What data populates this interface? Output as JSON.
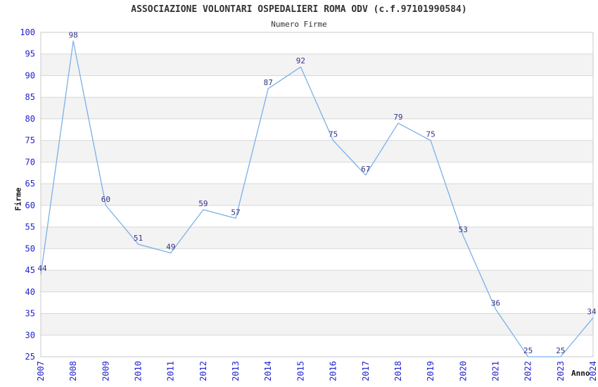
{
  "page": {
    "background": "#ffffff"
  },
  "chart_data": {
    "type": "line",
    "title": "ASSOCIAZIONE VOLONTARI OSPEDALIERI ROMA ODV (c.f.97101990584)",
    "subtitle": "Numero Firme",
    "xlabel": "Anno",
    "ylabel": "Firme",
    "categories": [
      "2007",
      "2008",
      "2009",
      "2010",
      "2011",
      "2012",
      "2013",
      "2014",
      "2015",
      "2016",
      "2017",
      "2018",
      "2019",
      "2020",
      "2021",
      "2022",
      "2023",
      "2024"
    ],
    "values": [
      44,
      98,
      60,
      51,
      49,
      59,
      57,
      87,
      92,
      75,
      67,
      79,
      75,
      53,
      36,
      25,
      25,
      34
    ],
    "ylim": [
      25,
      100
    ],
    "ytick_step": 5,
    "yticks": [
      25,
      30,
      35,
      40,
      45,
      50,
      55,
      60,
      65,
      70,
      75,
      80,
      85,
      90,
      95,
      100
    ],
    "grid": true,
    "alternating_bands": true,
    "legend": "none",
    "data_labels_visible": true,
    "colors": {
      "line": "#7CB0E8",
      "tick_label": "#2222CC",
      "data_label": "#333388",
      "grid_line": "#D8D8D8",
      "band_fill": "#F3F3F3",
      "plot_border": "#C9C9C9",
      "title": "#333333",
      "axis_title": "#111111"
    }
  }
}
